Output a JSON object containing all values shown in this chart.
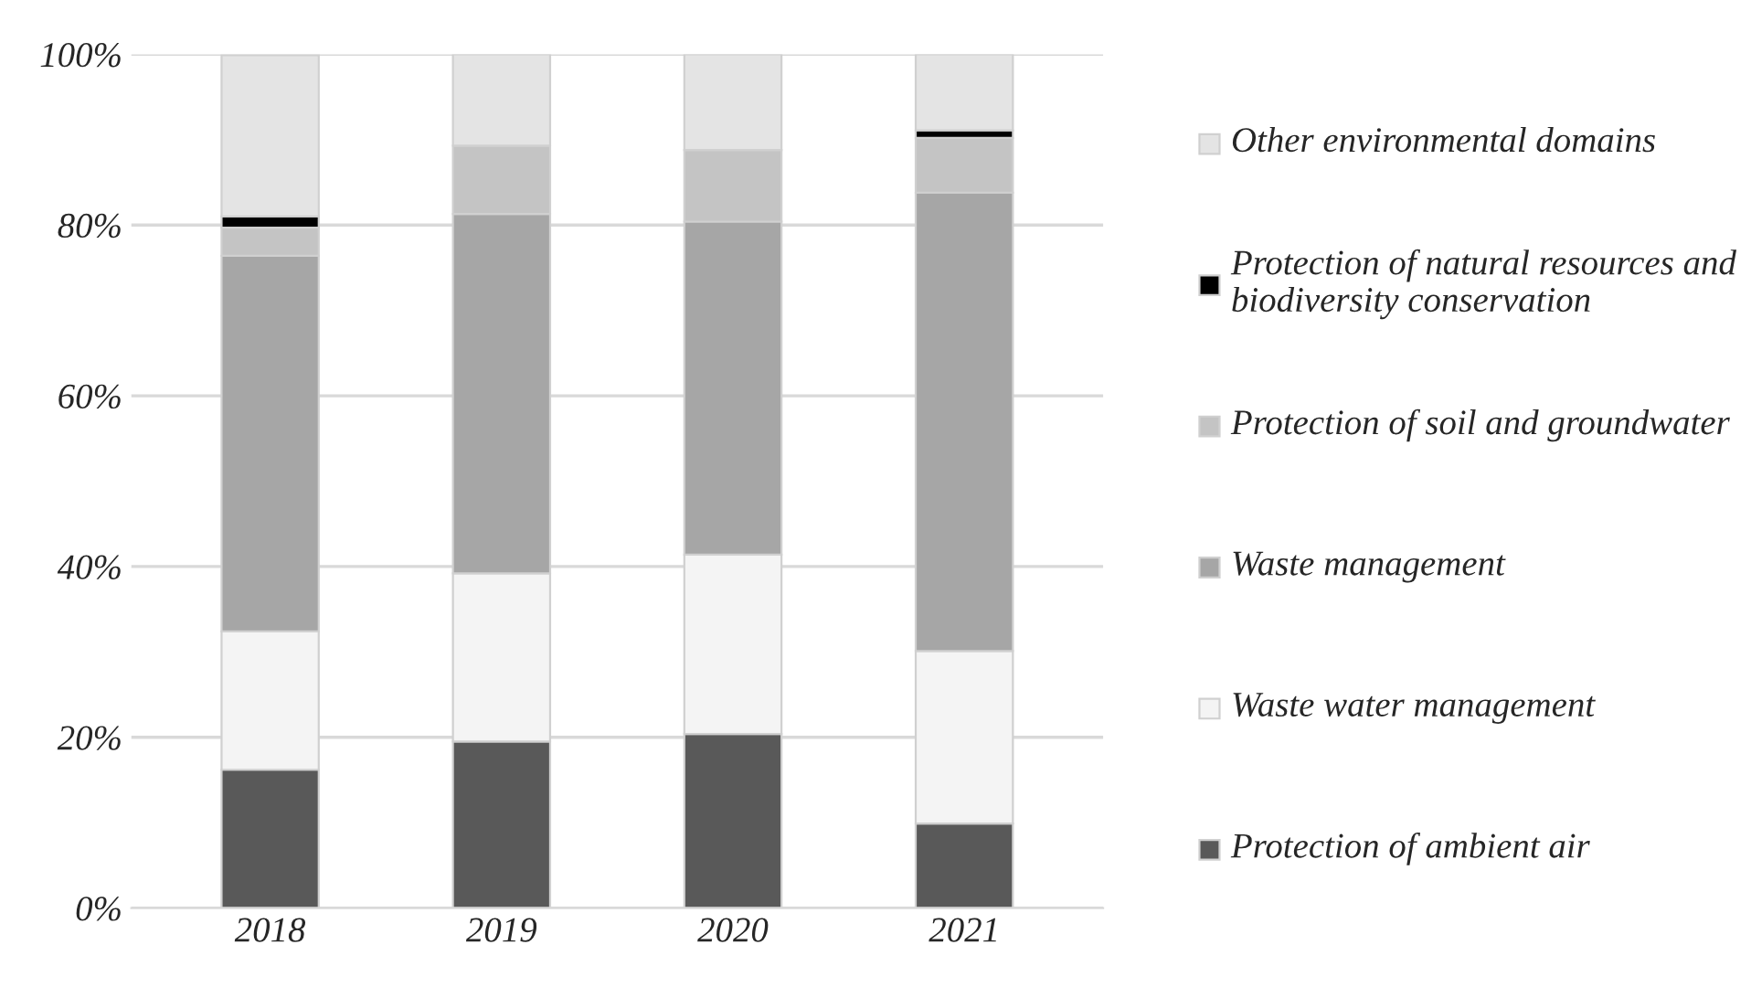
{
  "chart_data": {
    "type": "bar",
    "stacked": true,
    "categories": [
      "2018",
      "2019",
      "2020",
      "2021"
    ],
    "series": [
      {
        "name": "Protection of ambient air",
        "color": "#595959",
        "values": [
          16.2,
          19.5,
          20.4,
          9.9
        ]
      },
      {
        "name": "Waste water management",
        "color": "#f4f4f4",
        "values": [
          16.2,
          19.7,
          21.0,
          20.2
        ]
      },
      {
        "name": "Waste management",
        "color": "#a6a6a6",
        "values": [
          44.0,
          42.1,
          39.0,
          53.7
        ]
      },
      {
        "name": "Protection of soil and groundwater",
        "color": "#c4c4c4",
        "values": [
          3.3,
          8.0,
          8.4,
          6.4
        ]
      },
      {
        "name": "Protection of natural resources and biodiversity conservation",
        "color": "#000000",
        "values": [
          1.3,
          0,
          0,
          0.9
        ]
      },
      {
        "name": "Other environmental domains",
        "color": "#e4e4e4",
        "values": [
          18.9,
          10.7,
          11.2,
          8.9
        ]
      }
    ],
    "ylim": [
      0,
      100
    ],
    "yticks": [
      {
        "value": 0,
        "label": "0%"
      },
      {
        "value": 20,
        "label": "20%"
      },
      {
        "value": 40,
        "label": "40%"
      },
      {
        "value": 60,
        "label": "60%"
      },
      {
        "value": 80,
        "label": "80%"
      },
      {
        "value": 100,
        "label": "100%"
      }
    ],
    "grid": "y",
    "legend": "right"
  }
}
